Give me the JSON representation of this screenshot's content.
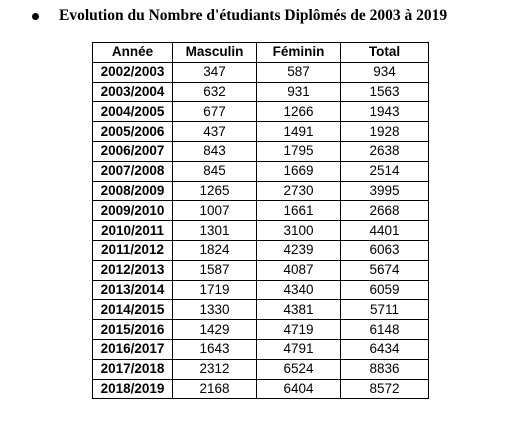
{
  "heading": {
    "text": "Evolution du Nombre d'étudiants Diplômés de 2003 à 2019"
  },
  "table": {
    "headers": [
      "Année",
      "Masculin",
      "Féminin",
      "Total"
    ],
    "rows": [
      [
        "2002/2003",
        "347",
        "587",
        "934"
      ],
      [
        "2003/2004",
        "632",
        "931",
        "1563"
      ],
      [
        "2004/2005",
        "677",
        "1266",
        "1943"
      ],
      [
        "2005/2006",
        "437",
        "1491",
        "1928"
      ],
      [
        "2006/2007",
        "843",
        "1795",
        "2638"
      ],
      [
        "2007/2008",
        "845",
        "1669",
        "2514"
      ],
      [
        "2008/2009",
        "1265",
        "2730",
        "3995"
      ],
      [
        "2009/2010",
        "1007",
        "1661",
        "2668"
      ],
      [
        "2010/2011",
        "1301",
        "3100",
        "4401"
      ],
      [
        "2011/2012",
        "1824",
        "4239",
        "6063"
      ],
      [
        "2012/2013",
        "1587",
        "4087",
        "5674"
      ],
      [
        "2013/2014",
        "1719",
        "4340",
        "6059"
      ],
      [
        "2014/2015",
        "1330",
        "4381",
        "5711"
      ],
      [
        "2015/2016",
        "1429",
        "4719",
        "6148"
      ],
      [
        "2016/2017",
        "1643",
        "4791",
        "6434"
      ],
      [
        "2017/2018",
        "2312",
        "6524",
        "8836"
      ],
      [
        "2018/2019",
        "2168",
        "6404",
        "8572"
      ]
    ]
  }
}
